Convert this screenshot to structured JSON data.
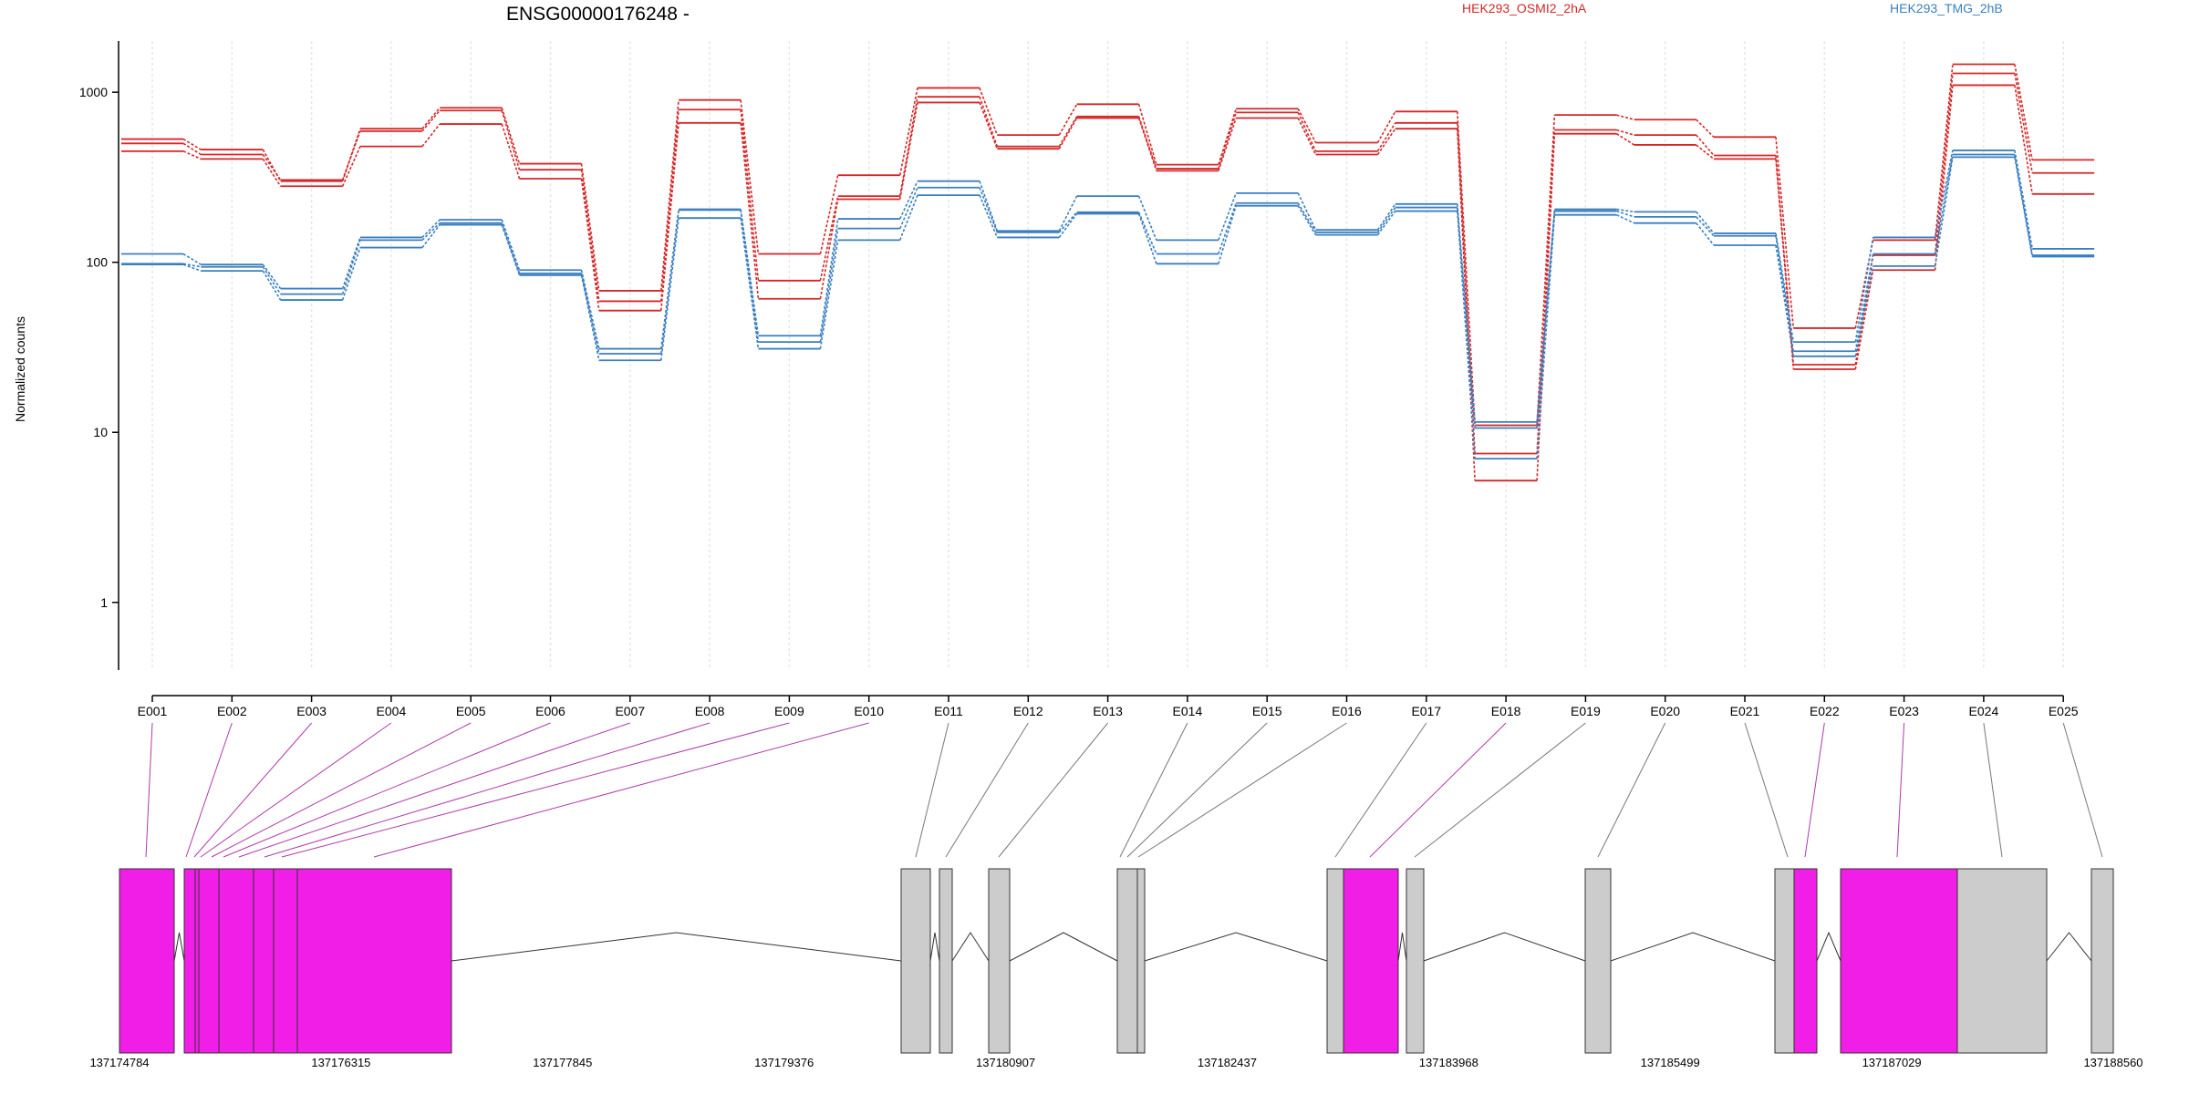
{
  "chart_data": {
    "type": "line",
    "title": "ENSG00000176248 -",
    "xlabel": "",
    "ylabel": "Normalized counts",
    "y_scale": "log",
    "ylim": [
      0.4,
      2000
    ],
    "y_ticks": [
      1,
      10,
      100,
      1000
    ],
    "y_tick_labels": [
      "1",
      "10",
      "100",
      "1000"
    ],
    "grid": "vertical dotted at each exon",
    "legend": [
      {
        "label": "HEK293_OSMI2_2hA",
        "color": "#d62728"
      },
      {
        "label": "HEK293_TMG_2hB",
        "color": "#3b7fc0"
      }
    ],
    "categories": [
      "E001",
      "E002",
      "E003",
      "E004",
      "E005",
      "E006",
      "E007",
      "E008",
      "E009",
      "E010",
      "E011",
      "E012",
      "E013",
      "E014",
      "E015",
      "E016",
      "E017",
      "E018",
      "E019",
      "E020",
      "E021",
      "E022",
      "E023",
      "E024",
      "E025"
    ],
    "series": [
      {
        "name": "HEK293_OSMI2_2hA",
        "color": "#d62728",
        "values": [
          530,
          460,
          300,
          610,
          810,
          380,
          68,
          900,
          112,
          325,
          1060,
          560,
          850,
          375,
          800,
          505,
          770,
          11.0,
          735,
          690,
          545,
          41,
          135,
          1460,
          400
        ]
      },
      {
        "name": "HEK293_OSMI2_2hA",
        "color": "#d62728",
        "values": [
          500,
          430,
          305,
          590,
          780,
          350,
          59,
          790,
          78,
          245,
          940,
          480,
          720,
          355,
          760,
          450,
          660,
          7.5,
          600,
          560,
          425,
          25,
          110,
          1290,
          335
        ]
      },
      {
        "name": "HEK293_OSMI2_2hA",
        "color": "#d62728",
        "values": [
          450,
          405,
          280,
          480,
          650,
          310,
          52,
          660,
          61,
          235,
          870,
          465,
          705,
          345,
          705,
          430,
          610,
          5.2,
          570,
          490,
          405,
          23.5,
          90,
          1100,
          252
        ]
      },
      {
        "name": "HEK293_TMG_2hB",
        "color": "#3b7fc0",
        "values": [
          112,
          97,
          70,
          140,
          178,
          90,
          31,
          205,
          37,
          180,
          300,
          153,
          245,
          135,
          255,
          155,
          220,
          11.5,
          205,
          198,
          148,
          34,
          140,
          455,
          120
        ]
      },
      {
        "name": "HEK293_TMG_2hB",
        "color": "#3b7fc0",
        "values": [
          98,
          94,
          65,
          135,
          170,
          86,
          29,
          203,
          34,
          158,
          275,
          150,
          197,
          112,
          223,
          150,
          210,
          10.6,
          200,
          185,
          143,
          30,
          112,
          430,
          110
        ]
      },
      {
        "name": "HEK293_TMG_2hB",
        "color": "#3b7fc0",
        "values": [
          97,
          89,
          60,
          122,
          166,
          84,
          26.5,
          182,
          31,
          135,
          248,
          140,
          193,
          98,
          215,
          145,
          200,
          7.0,
          190,
          170,
          126,
          28,
          95,
          415,
          108
        ]
      }
    ],
    "gene_model": {
      "coordinate_ticks": [
        "137174784",
        "137176315",
        "137177845",
        "137179376",
        "137180907",
        "137182437",
        "137183968",
        "137185499",
        "137187029",
        "137188560"
      ],
      "exon_colors": {
        "highlighted": "#f01ee6",
        "other": "#cccccc"
      }
    }
  }
}
